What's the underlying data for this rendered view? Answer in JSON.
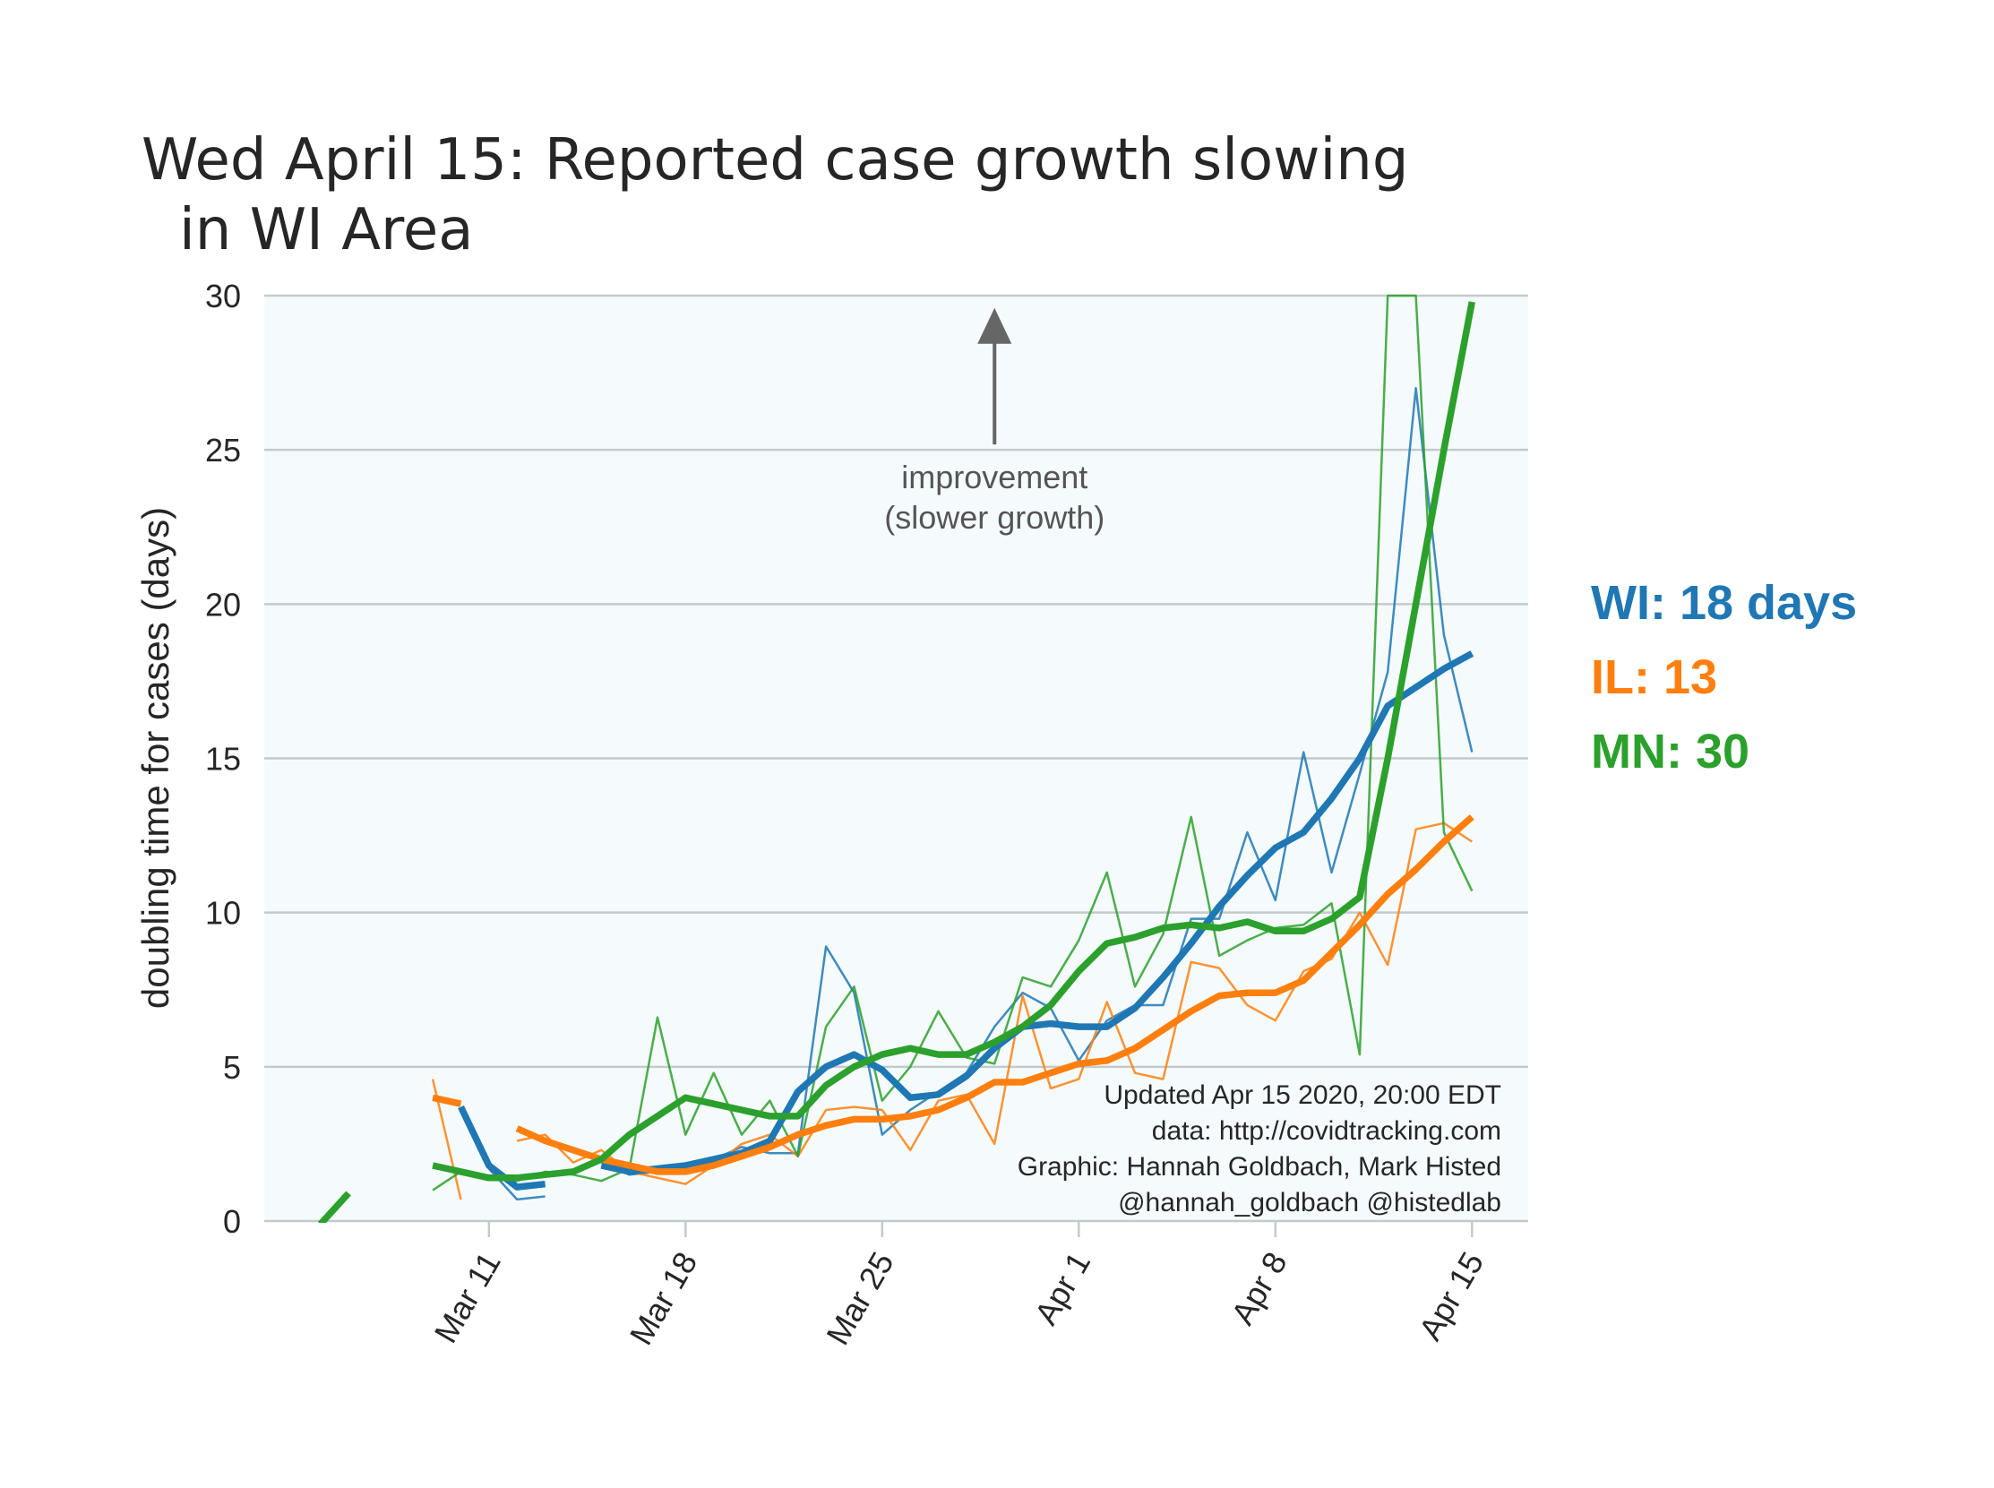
{
  "title_line1": "Wed April 15: Reported case growth slowing",
  "title_line2": "in WI Area",
  "annotation": {
    "line1": "improvement",
    "line2": "(slower growth)",
    "date": "Mar 29",
    "y_from": 25,
    "y_to": 29.6
  },
  "credits": [
    "Updated Apr 15 2020, 20:00 EDT",
    "data: http://covidtracking.com",
    "Graphic: Hannah Goldbach, Mark Histed",
    "@hannah_goldbach @histedlab"
  ],
  "legend": [
    {
      "text": "WI: 18 days",
      "color": "#1f77b4"
    },
    {
      "text": "IL: 13",
      "color": "#ff7f0e"
    },
    {
      "text": "MN: 30",
      "color": "#2ca02c"
    }
  ],
  "chart_data": {
    "type": "line",
    "title": "Wed April 15: Reported case growth slowing in WI Area",
    "xlabel": "",
    "ylabel": "doubling time for cases (days)",
    "xlim": [
      "Mar 3",
      "Apr 17"
    ],
    "ylim": [
      0,
      30
    ],
    "yticks": [
      0,
      5,
      10,
      15,
      20,
      25,
      30
    ],
    "xticks": [
      "Mar 11",
      "Mar 18",
      "Mar 25",
      "Apr 1",
      "Apr 8",
      "Apr 15"
    ],
    "grid": "horizontal",
    "background": "#f5fbfd",
    "series": [
      {
        "name": "WI",
        "color": "#1f77b4",
        "kind": "smoothed",
        "points": [
          [
            "Mar 10",
            3.7
          ],
          [
            "Mar 11",
            1.8
          ],
          [
            "Mar 12",
            1.1
          ],
          [
            "Mar 13",
            1.2
          ],
          [
            "null",
            null
          ],
          [
            "Mar 15",
            1.8
          ],
          [
            "Mar 16",
            1.6
          ],
          [
            "Mar 17",
            1.7
          ],
          [
            "Mar 18",
            1.8
          ],
          [
            "Mar 19",
            2.0
          ],
          [
            "Mar 20",
            2.2
          ],
          [
            "Mar 21",
            2.6
          ],
          [
            "Mar 22",
            4.2
          ],
          [
            "Mar 23",
            5.0
          ],
          [
            "Mar 24",
            5.4
          ],
          [
            "Mar 25",
            4.9
          ],
          [
            "Mar 26",
            4.0
          ],
          [
            "Mar 27",
            4.1
          ],
          [
            "Mar 28",
            4.7
          ],
          [
            "Mar 29",
            5.6
          ],
          [
            "Mar 30",
            6.3
          ],
          [
            "Mar 31",
            6.4
          ],
          [
            "Apr 1",
            6.3
          ],
          [
            "Apr 2",
            6.3
          ],
          [
            "Apr 3",
            6.9
          ],
          [
            "Apr 4",
            7.9
          ],
          [
            "Apr 5",
            9.0
          ],
          [
            "Apr 6",
            10.2
          ],
          [
            "Apr 7",
            11.2
          ],
          [
            "Apr 8",
            12.1
          ],
          [
            "Apr 9",
            12.6
          ],
          [
            "Apr 10",
            13.7
          ],
          [
            "Apr 11",
            15.0
          ],
          [
            "Apr 12",
            16.7
          ],
          [
            "Apr 13",
            17.3
          ],
          [
            "Apr 14",
            17.9
          ],
          [
            "Apr 15",
            18.4
          ]
        ]
      },
      {
        "name": "WI",
        "color": "#1f77b4",
        "kind": "raw",
        "points": [
          [
            "Mar 10",
            3.6
          ],
          [
            "Mar 11",
            1.7
          ],
          [
            "Mar 12",
            0.7
          ],
          [
            "Mar 13",
            0.8
          ],
          [
            "null",
            null
          ],
          [
            "Mar 15",
            1.9
          ],
          [
            "Mar 16",
            1.5
          ],
          [
            "Mar 17",
            1.6
          ],
          [
            "Mar 18",
            1.8
          ],
          [
            "Mar 19",
            2.0
          ],
          [
            "Mar 20",
            2.4
          ],
          [
            "Mar 21",
            2.2
          ],
          [
            "Mar 22",
            2.2
          ],
          [
            "Mar 23",
            8.9
          ],
          [
            "Mar 24",
            7.4
          ],
          [
            "Mar 25",
            2.8
          ],
          [
            "Mar 26",
            3.6
          ],
          [
            "Mar 27",
            4.2
          ],
          [
            "Mar 28",
            4.8
          ],
          [
            "Mar 29",
            6.3
          ],
          [
            "Mar 30",
            7.4
          ],
          [
            "Mar 31",
            6.9
          ],
          [
            "Apr 1",
            5.2
          ],
          [
            "Apr 2",
            6.5
          ],
          [
            "Apr 3",
            7.0
          ],
          [
            "Apr 4",
            7.0
          ],
          [
            "Apr 5",
            9.8
          ],
          [
            "Apr 6",
            9.8
          ],
          [
            "Apr 7",
            12.6
          ],
          [
            "Apr 8",
            10.4
          ],
          [
            "Apr 9",
            15.2
          ],
          [
            "Apr 10",
            11.3
          ],
          [
            "Apr 11",
            14.5
          ],
          [
            "Apr 12",
            17.8
          ],
          [
            "Apr 13",
            27.0
          ],
          [
            "Apr 14",
            19.0
          ],
          [
            "Apr 15",
            15.2
          ]
        ]
      },
      {
        "name": "IL",
        "color": "#ff7f0e",
        "kind": "smoothed",
        "points": [
          [
            "Mar 9",
            4.0
          ],
          [
            "Mar 10",
            3.8
          ],
          [
            "null",
            null
          ],
          [
            "Mar 12",
            3.0
          ],
          [
            "Mar 13",
            2.6
          ],
          [
            "Mar 14",
            2.3
          ],
          [
            "Mar 15",
            2.0
          ],
          [
            "Mar 16",
            1.8
          ],
          [
            "Mar 17",
            1.6
          ],
          [
            "Mar 18",
            1.6
          ],
          [
            "Mar 19",
            1.8
          ],
          [
            "Mar 20",
            2.1
          ],
          [
            "Mar 21",
            2.4
          ],
          [
            "Mar 22",
            2.8
          ],
          [
            "Mar 23",
            3.1
          ],
          [
            "Mar 24",
            3.3
          ],
          [
            "Mar 25",
            3.3
          ],
          [
            "Mar 26",
            3.4
          ],
          [
            "Mar 27",
            3.6
          ],
          [
            "Mar 28",
            4.0
          ],
          [
            "Mar 29",
            4.5
          ],
          [
            "Mar 30",
            4.5
          ],
          [
            "Mar 31",
            4.8
          ],
          [
            "Apr 1",
            5.1
          ],
          [
            "Apr 2",
            5.2
          ],
          [
            "Apr 3",
            5.6
          ],
          [
            "Apr 4",
            6.2
          ],
          [
            "Apr 5",
            6.8
          ],
          [
            "Apr 6",
            7.3
          ],
          [
            "Apr 7",
            7.4
          ],
          [
            "Apr 8",
            7.4
          ],
          [
            "Apr 9",
            7.8
          ],
          [
            "Apr 10",
            8.7
          ],
          [
            "Apr 11",
            9.6
          ],
          [
            "Apr 12",
            10.6
          ],
          [
            "Apr 13",
            11.4
          ],
          [
            "Apr 14",
            12.3
          ],
          [
            "Apr 15",
            13.1
          ]
        ]
      },
      {
        "name": "IL",
        "color": "#ff7f0e",
        "kind": "raw",
        "points": [
          [
            "Mar 9",
            4.6
          ],
          [
            "Mar 10",
            0.7
          ],
          [
            "null",
            null
          ],
          [
            "Mar 12",
            2.6
          ],
          [
            "Mar 13",
            2.8
          ],
          [
            "Mar 14",
            1.9
          ],
          [
            "Mar 15",
            2.3
          ],
          [
            "Mar 16",
            1.6
          ],
          [
            "Mar 17",
            1.4
          ],
          [
            "Mar 18",
            1.2
          ],
          [
            "Mar 19",
            1.8
          ],
          [
            "Mar 20",
            2.5
          ],
          [
            "Mar 21",
            2.8
          ],
          [
            "Mar 22",
            2.1
          ],
          [
            "Mar 23",
            3.6
          ],
          [
            "Mar 24",
            3.7
          ],
          [
            "Mar 25",
            3.6
          ],
          [
            "Mar 26",
            2.3
          ],
          [
            "Mar 27",
            3.9
          ],
          [
            "Mar 28",
            4.1
          ],
          [
            "Mar 29",
            2.5
          ],
          [
            "Mar 30",
            7.3
          ],
          [
            "Mar 31",
            4.3
          ],
          [
            "Apr 1",
            4.6
          ],
          [
            "Apr 2",
            7.1
          ],
          [
            "Apr 3",
            4.8
          ],
          [
            "Apr 4",
            4.6
          ],
          [
            "Apr 5",
            8.4
          ],
          [
            "Apr 6",
            8.2
          ],
          [
            "Apr 7",
            7.0
          ],
          [
            "Apr 8",
            6.5
          ],
          [
            "Apr 9",
            8.1
          ],
          [
            "Apr 10",
            8.5
          ],
          [
            "Apr 11",
            10.0
          ],
          [
            "Apr 12",
            8.3
          ],
          [
            "Apr 13",
            12.7
          ],
          [
            "Apr 14",
            12.9
          ],
          [
            "Apr 15",
            12.3
          ]
        ]
      },
      {
        "name": "MN",
        "color": "#2ca02c",
        "kind": "smoothed",
        "points": [
          [
            "Mar 5",
            -0.1
          ],
          [
            "Mar 6",
            0.9
          ],
          [
            "null",
            null
          ],
          [
            "Mar 9",
            1.8
          ],
          [
            "Mar 10",
            1.6
          ],
          [
            "Mar 11",
            1.4
          ],
          [
            "Mar 12",
            1.4
          ],
          [
            "Mar 13",
            1.5
          ],
          [
            "Mar 14",
            1.6
          ],
          [
            "Mar 15",
            2.0
          ],
          [
            "Mar 16",
            2.8
          ],
          [
            "Mar 17",
            3.4
          ],
          [
            "Mar 18",
            4.0
          ],
          [
            "Mar 19",
            3.8
          ],
          [
            "Mar 20",
            3.6
          ],
          [
            "Mar 21",
            3.4
          ],
          [
            "Mar 22",
            3.4
          ],
          [
            "Mar 23",
            4.4
          ],
          [
            "Mar 24",
            5.0
          ],
          [
            "Mar 25",
            5.4
          ],
          [
            "Mar 26",
            5.6
          ],
          [
            "Mar 27",
            5.4
          ],
          [
            "Mar 28",
            5.4
          ],
          [
            "Mar 29",
            5.8
          ],
          [
            "Mar 30",
            6.3
          ],
          [
            "Mar 31",
            7.0
          ],
          [
            "Apr 1",
            8.1
          ],
          [
            "Apr 2",
            9.0
          ],
          [
            "Apr 3",
            9.2
          ],
          [
            "Apr 4",
            9.5
          ],
          [
            "Apr 5",
            9.6
          ],
          [
            "Apr 6",
            9.5
          ],
          [
            "Apr 7",
            9.7
          ],
          [
            "Apr 8",
            9.4
          ],
          [
            "Apr 9",
            9.4
          ],
          [
            "Apr 10",
            9.8
          ],
          [
            "Apr 11",
            10.5
          ],
          [
            "Apr 12",
            15.0
          ],
          [
            "Apr 13",
            20.0
          ],
          [
            "Apr 14",
            25.0
          ],
          [
            "Apr 15",
            29.8
          ]
        ]
      },
      {
        "name": "MN",
        "color": "#2ca02c",
        "kind": "raw",
        "points": [
          [
            "Mar 9",
            1.0
          ],
          [
            "Mar 10",
            1.6
          ],
          [
            "Mar 11",
            1.4
          ],
          [
            "Mar 12",
            1.3
          ],
          [
            "Mar 13",
            1.6
          ],
          [
            "Mar 14",
            1.5
          ],
          [
            "Mar 15",
            1.3
          ],
          [
            "Mar 16",
            1.7
          ],
          [
            "Mar 17",
            6.6
          ],
          [
            "Mar 18",
            2.8
          ],
          [
            "Mar 19",
            4.8
          ],
          [
            "Mar 20",
            2.8
          ],
          [
            "Mar 21",
            3.9
          ],
          [
            "Mar 22",
            2.1
          ],
          [
            "Mar 23",
            6.3
          ],
          [
            "Mar 24",
            7.6
          ],
          [
            "Mar 25",
            3.9
          ],
          [
            "Mar 26",
            5.0
          ],
          [
            "Mar 27",
            6.8
          ],
          [
            "Mar 28",
            5.3
          ],
          [
            "Mar 29",
            5.1
          ],
          [
            "Mar 30",
            7.9
          ],
          [
            "Mar 31",
            7.6
          ],
          [
            "Apr 1",
            9.1
          ],
          [
            "Apr 2",
            11.3
          ],
          [
            "Apr 3",
            7.6
          ],
          [
            "Apr 4",
            9.3
          ],
          [
            "Apr 5",
            13.1
          ],
          [
            "Apr 6",
            8.6
          ],
          [
            "Apr 7",
            9.1
          ],
          [
            "Apr 8",
            9.5
          ],
          [
            "Apr 9",
            9.6
          ],
          [
            "Apr 10",
            10.3
          ],
          [
            "Apr 11",
            5.4
          ],
          [
            "Apr 12",
            30.0
          ],
          [
            "Apr 13",
            30.0
          ],
          [
            "Apr 14",
            12.6
          ],
          [
            "Apr 15",
            10.7
          ]
        ]
      }
    ]
  }
}
